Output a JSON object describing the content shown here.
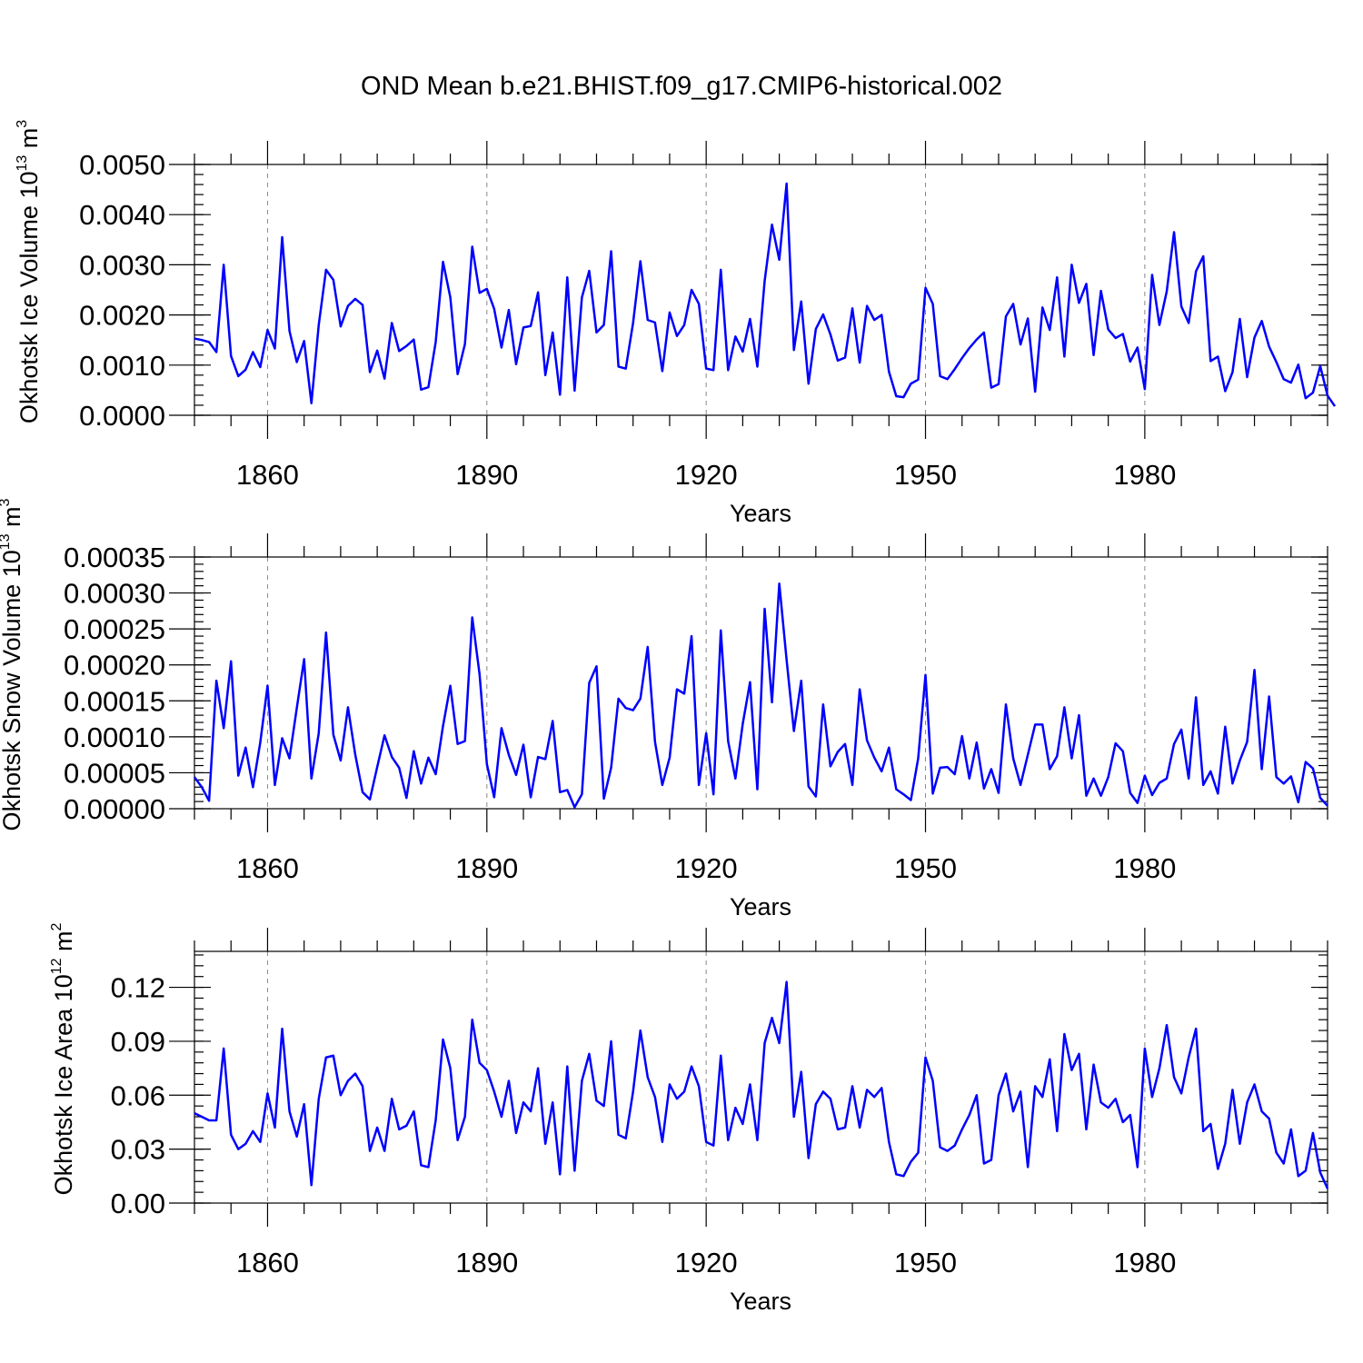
{
  "title": "OND Mean b.e21.BHIST.f09_g17.CMIP6-historical.002",
  "chart_data": [
    {
      "type": "line",
      "id": "ice-volume",
      "ylabel": "Okhotsk Ice Volume 10",
      "ylabel_sup": "13",
      "ylabel_unit": " m",
      "ylabel_unit_sup": "3",
      "xlabel": "Years",
      "xlim": [
        1850,
        2005
      ],
      "ylim": [
        0,
        0.005
      ],
      "x_ticks": [
        1860,
        1890,
        1920,
        1950,
        1980
      ],
      "x_tick_labels": [
        "1860",
        "1890",
        "1920",
        "1950",
        "1980"
      ],
      "y_ticks": [
        0,
        0.001,
        0.002,
        0.003,
        0.004,
        0.005
      ],
      "y_tick_labels": [
        "0.0000",
        "0.0010",
        "0.0020",
        "0.0030",
        "0.0040",
        "0.0050"
      ],
      "y_minor_step": 0.0002,
      "grid_x": true,
      "series": [
        {
          "name": "Okhotsk Ice Volume",
          "x_start": 1850,
          "values": [
            0.00153,
            0.0015,
            0.00146,
            0.00126,
            0.003,
            0.00118,
            0.00078,
            0.00091,
            0.00126,
            0.00096,
            0.0017,
            0.00133,
            0.00355,
            0.00168,
            0.00106,
            0.00148,
            0.00024,
            0.0018,
            0.0029,
            0.0027,
            0.00177,
            0.00218,
            0.00232,
            0.0022,
            0.00086,
            0.00129,
            0.00073,
            0.00184,
            0.00128,
            0.00138,
            0.00151,
            0.00051,
            0.00056,
            0.00146,
            0.00306,
            0.00235,
            0.00082,
            0.00142,
            0.00336,
            0.00244,
            0.00252,
            0.00212,
            0.00135,
            0.0021,
            0.00102,
            0.00175,
            0.00178,
            0.00245,
            0.0008,
            0.00165,
            0.00041,
            0.00275,
            0.00049,
            0.00235,
            0.00288,
            0.00165,
            0.0018,
            0.00327,
            0.00097,
            0.00093,
            0.00184,
            0.00307,
            0.0019,
            0.00185,
            0.00088,
            0.00205,
            0.00158,
            0.0018,
            0.0025,
            0.00222,
            0.00093,
            0.0009,
            0.0029,
            0.0009,
            0.00157,
            0.00127,
            0.00192,
            0.00097,
            0.00268,
            0.0038,
            0.0031,
            0.00462,
            0.0013,
            0.00227,
            0.00063,
            0.00172,
            0.00201,
            0.00161,
            0.00109,
            0.00115,
            0.00213,
            0.00105,
            0.00218,
            0.0019,
            0.002,
            0.00087,
            0.00038,
            0.00036,
            0.00063,
            0.00071,
            0.00254,
            0.00222,
            0.00078,
            0.00072,
            0.00092,
            0.00114,
            0.00134,
            0.00151,
            0.00165,
            0.00055,
            0.00062,
            0.00197,
            0.00222,
            0.00141,
            0.00193,
            0.00047,
            0.00215,
            0.0017,
            0.00275,
            0.00117,
            0.003,
            0.00224,
            0.00262,
            0.0012,
            0.00248,
            0.00171,
            0.00154,
            0.00162,
            0.00107,
            0.00135,
            0.00052,
            0.0028,
            0.0018,
            0.00247,
            0.00365,
            0.00217,
            0.00184,
            0.00287,
            0.00317,
            0.00108,
            0.00117,
            0.00048,
            0.00086,
            0.00192,
            0.00076,
            0.00155,
            0.00188,
            0.00137,
            0.00106,
            0.00072,
            0.00065,
            0.00101,
            0.00034,
            0.00045,
            0.00098,
            0.00039,
            0.00018
          ]
        }
      ]
    },
    {
      "type": "line",
      "id": "snow-volume",
      "ylabel": "Okhotsk Snow Volume 10",
      "ylabel_sup": "13",
      "ylabel_unit": " m",
      "ylabel_unit_sup": "3",
      "xlabel": "Years",
      "xlim": [
        1850,
        2005
      ],
      "ylim": [
        0,
        0.00035
      ],
      "x_ticks": [
        1860,
        1890,
        1920,
        1950,
        1980
      ],
      "x_tick_labels": [
        "1860",
        "1890",
        "1920",
        "1950",
        "1980"
      ],
      "y_ticks": [
        0,
        5e-05,
        0.0001,
        0.00015,
        0.0002,
        0.00025,
        0.0003,
        0.00035
      ],
      "y_tick_labels": [
        "0.00000",
        "0.00005",
        "0.00010",
        "0.00015",
        "0.00020",
        "0.00025",
        "0.00030",
        "0.00035"
      ],
      "y_minor_step": 1e-05,
      "grid_x": true,
      "series": [
        {
          "name": "Okhotsk Snow Volume",
          "x_start": 1850,
          "values": [
            4.4e-05,
            3e-05,
            1.1e-05,
            0.000178,
            0.000112,
            0.000205,
            4.6e-05,
            8.5e-05,
            3e-05,
            9.2e-05,
            0.000171,
            3.3e-05,
            9.8e-05,
            7e-05,
            0.00014,
            0.000208,
            4.2e-05,
            0.000105,
            0.000245,
            0.000103,
            6.7e-05,
            0.000141,
            7.5e-05,
            2.3e-05,
            1.3e-05,
            5.8e-05,
            0.000102,
            7.2e-05,
            5.7e-05,
            1.5e-05,
            8e-05,
            3.5e-05,
            7.1e-05,
            4.8e-05,
            0.000115,
            0.000171,
            9e-05,
            9.4e-05,
            0.000266,
            0.000187,
            6.2e-05,
            1.6e-05,
            0.000112,
            7.5e-05,
            4.7e-05,
            8.9e-05,
            1.6e-05,
            7.2e-05,
            6.9e-05,
            0.000122,
            2.3e-05,
            2.6e-05,
            2e-06,
            2e-05,
            0.000175,
            0.000198,
            1.4e-05,
            5.7e-05,
            0.000153,
            0.00014,
            0.000137,
            0.000153,
            0.000225,
            9.3e-05,
            3.3e-05,
            7.1e-05,
            0.000166,
            0.00016,
            0.00024,
            3.3e-05,
            0.000105,
            2e-05,
            0.000248,
            9.4e-05,
            4.2e-05,
            0.000118,
            0.000176,
            2.7e-05,
            0.000278,
            0.000148,
            0.000313,
            0.000207,
            0.000108,
            0.000178,
            3.1e-05,
            1.7e-05,
            0.000145,
            5.9e-05,
            7.9e-05,
            9e-05,
            3.3e-05,
            0.000166,
            9.5e-05,
            7.1e-05,
            5.2e-05,
            8.5e-05,
            2.7e-05,
            2e-05,
            1.2e-05,
            7e-05,
            0.000186,
            2.1e-05,
            5.7e-05,
            5.8e-05,
            4.8e-05,
            0.000101,
            4.2e-05,
            9.2e-05,
            2.8e-05,
            5.5e-05,
            2.2e-05,
            0.000145,
            7e-05,
            3.3e-05,
            7.5e-05,
            0.000117,
            0.000117,
            5.5e-05,
            7.3e-05,
            0.000141,
            7e-05,
            0.00013,
            1.8e-05,
            4.2e-05,
            1.8e-05,
            4.4e-05,
            9.1e-05,
            8e-05,
            2.2e-05,
            8e-06,
            4.6e-05,
            1.9e-05,
            3.6e-05,
            4.2e-05,
            9e-05,
            0.00011,
            4.2e-05,
            0.000155,
            3.3e-05,
            5.2e-05,
            2.1e-05,
            0.000114,
            3.5e-05,
            6.7e-05,
            9.3e-05,
            0.000193,
            5.5e-05,
            0.000156,
            4.4e-05,
            3.5e-05,
            4.5e-05,
            9e-06,
            6.5e-05,
            5.6e-05,
            1.5e-05,
            4e-06
          ]
        }
      ]
    },
    {
      "type": "line",
      "id": "ice-area",
      "ylabel": "Okhotsk Ice Area 10",
      "ylabel_sup": "12",
      "ylabel_unit": " m",
      "ylabel_unit_sup": "2",
      "xlabel": "Years",
      "xlim": [
        1850,
        2005
      ],
      "ylim": [
        0,
        0.14
      ],
      "x_ticks": [
        1860,
        1890,
        1920,
        1950,
        1980
      ],
      "x_tick_labels": [
        "1860",
        "1890",
        "1920",
        "1950",
        "1980"
      ],
      "y_ticks": [
        0,
        0.03,
        0.06,
        0.09,
        0.12
      ],
      "y_tick_labels": [
        "0.00",
        "0.03",
        "0.06",
        "0.09",
        "0.12"
      ],
      "y_minor_step": 0.006,
      "grid_x": true,
      "series": [
        {
          "name": "Okhotsk Ice Area",
          "x_start": 1850,
          "values": [
            0.05,
            0.048,
            0.046,
            0.046,
            0.086,
            0.038,
            0.03,
            0.033,
            0.04,
            0.034,
            0.061,
            0.042,
            0.097,
            0.051,
            0.037,
            0.055,
            0.01,
            0.058,
            0.081,
            0.082,
            0.06,
            0.068,
            0.072,
            0.065,
            0.029,
            0.042,
            0.029,
            0.058,
            0.041,
            0.043,
            0.051,
            0.021,
            0.02,
            0.046,
            0.091,
            0.075,
            0.035,
            0.048,
            0.102,
            0.078,
            0.074,
            0.062,
            0.048,
            0.068,
            0.039,
            0.056,
            0.051,
            0.075,
            0.033,
            0.056,
            0.016,
            0.076,
            0.018,
            0.068,
            0.083,
            0.057,
            0.054,
            0.09,
            0.038,
            0.036,
            0.062,
            0.096,
            0.07,
            0.059,
            0.034,
            0.066,
            0.058,
            0.062,
            0.076,
            0.065,
            0.034,
            0.032,
            0.082,
            0.035,
            0.053,
            0.044,
            0.066,
            0.035,
            0.089,
            0.103,
            0.089,
            0.123,
            0.048,
            0.073,
            0.025,
            0.055,
            0.062,
            0.058,
            0.041,
            0.042,
            0.065,
            0.042,
            0.063,
            0.059,
            0.064,
            0.034,
            0.016,
            0.015,
            0.023,
            0.028,
            0.081,
            0.068,
            0.031,
            0.029,
            0.032,
            0.041,
            0.049,
            0.06,
            0.022,
            0.024,
            0.06,
            0.072,
            0.051,
            0.062,
            0.02,
            0.065,
            0.059,
            0.08,
            0.04,
            0.094,
            0.074,
            0.083,
            0.041,
            0.077,
            0.056,
            0.053,
            0.058,
            0.045,
            0.049,
            0.02,
            0.086,
            0.059,
            0.075,
            0.099,
            0.07,
            0.061,
            0.081,
            0.097,
            0.04,
            0.044,
            0.019,
            0.033,
            0.063,
            0.033,
            0.056,
            0.066,
            0.051,
            0.047,
            0.028,
            0.022,
            0.041,
            0.015,
            0.018,
            0.039,
            0.017,
            0.008
          ]
        }
      ]
    }
  ]
}
